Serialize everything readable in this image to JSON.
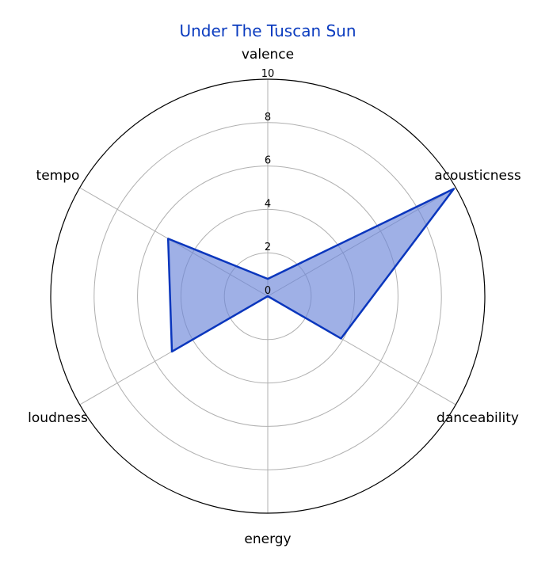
{
  "chart_data": {
    "type": "radar",
    "title": "Under The Tuscan Sun",
    "axes": [
      "valence",
      "acousticness",
      "danceability",
      "energy",
      "loudness",
      "tempo"
    ],
    "series": [
      {
        "values": [
          0.8,
          9.9,
          3.9,
          0.0,
          5.1,
          5.3
        ]
      }
    ],
    "rlim": [
      0,
      10
    ],
    "rticks": [
      "0",
      "2",
      "4",
      "6",
      "8",
      "10"
    ],
    "grid": true,
    "colors": {
      "line": "#0a36bd",
      "fill": "#6c86d9",
      "title": "#0a3bbf"
    }
  }
}
